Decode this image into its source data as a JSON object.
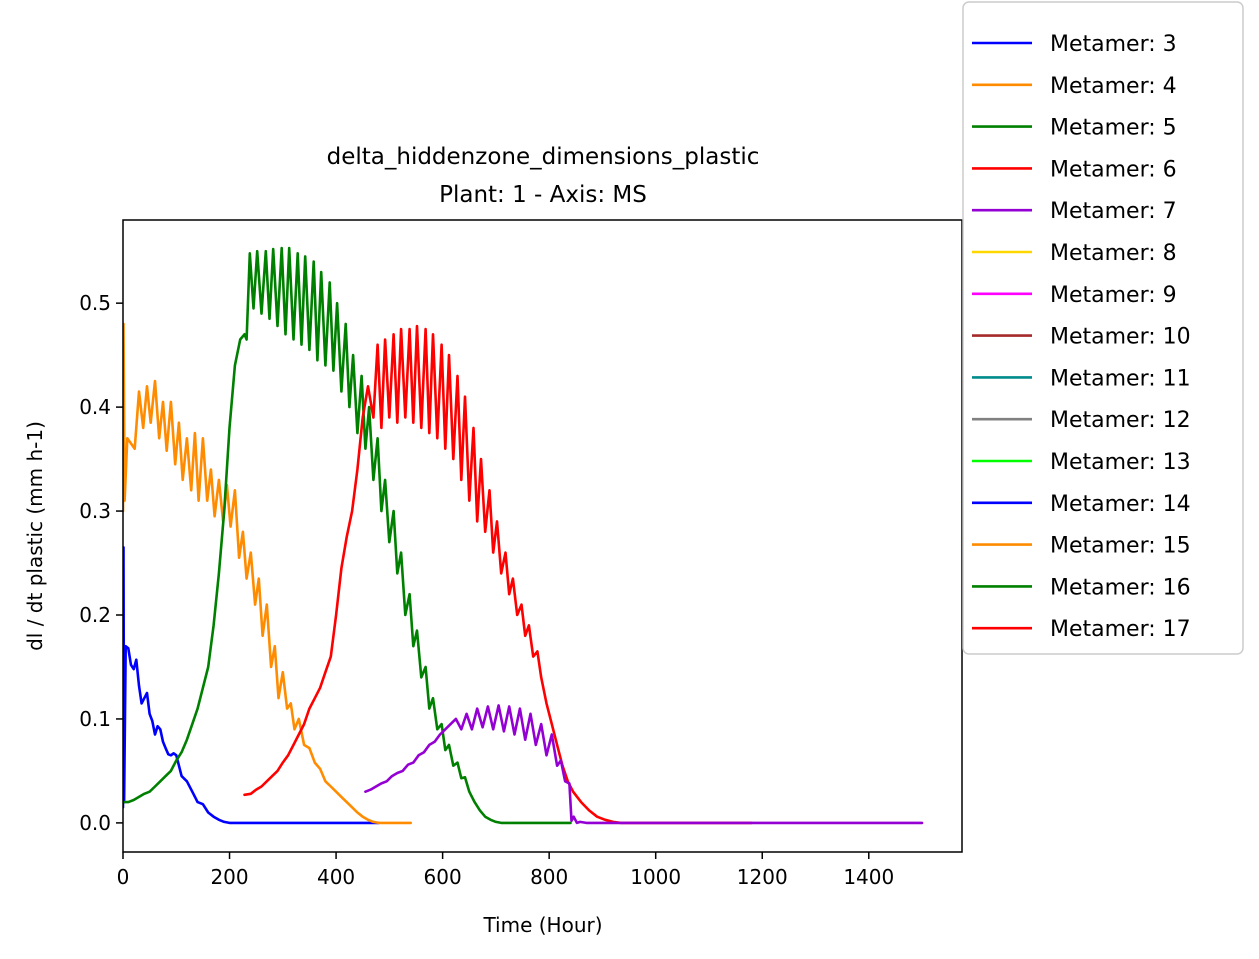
{
  "chart_data": {
    "type": "line",
    "title": "delta_hiddenzone_dimensions_plastic",
    "subtitle": "Plant: 1 - Axis: MS",
    "xlabel": "Time (Hour)",
    "ylabel": "dl / dt plastic (mm h-1)",
    "xlim": [
      0,
      1575
    ],
    "ylim": [
      -0.028,
      0.58
    ],
    "xticks": [
      0,
      200,
      400,
      600,
      800,
      1000,
      1200,
      1400
    ],
    "yticks": [
      0.0,
      0.1,
      0.2,
      0.3,
      0.4,
      0.5
    ],
    "xtick_labels": [
      "0",
      "200",
      "400",
      "600",
      "800",
      "1000",
      "1200",
      "1400"
    ],
    "ytick_labels": [
      "0.0",
      "0.1",
      "0.2",
      "0.3",
      "0.4",
      "0.5"
    ],
    "grid": false,
    "legend_position": "outside-top-right",
    "series": [
      {
        "name": "Metamer: 3",
        "color": "#0000ff",
        "x": [
          0,
          1,
          2,
          5,
          10,
          15,
          20,
          25,
          30,
          35,
          40,
          45,
          50,
          55,
          60,
          65,
          70,
          75,
          80,
          85,
          90,
          95,
          100,
          110,
          120,
          130,
          140,
          150,
          160,
          170,
          180,
          190,
          200,
          220,
          260,
          300,
          360,
          420,
          480
        ],
        "y": [
          0.015,
          0.265,
          0.02,
          0.17,
          0.168,
          0.152,
          0.148,
          0.157,
          0.132,
          0.115,
          0.12,
          0.125,
          0.105,
          0.098,
          0.085,
          0.093,
          0.09,
          0.078,
          0.072,
          0.066,
          0.065,
          0.067,
          0.065,
          0.045,
          0.04,
          0.03,
          0.02,
          0.018,
          0.01,
          0.006,
          0.003,
          0.001,
          0.0,
          0.0,
          0.0,
          0.0,
          0.0,
          0.0,
          0.0
        ]
      },
      {
        "name": "Metamer: 4",
        "color": "#ff8c00",
        "x": [
          0,
          1,
          3,
          8,
          15,
          22,
          30,
          38,
          45,
          52,
          60,
          68,
          75,
          82,
          90,
          98,
          105,
          112,
          120,
          128,
          135,
          142,
          150,
          158,
          165,
          172,
          180,
          188,
          195,
          202,
          210,
          218,
          225,
          232,
          240,
          248,
          255,
          262,
          270,
          278,
          285,
          292,
          300,
          308,
          315,
          322,
          330,
          340,
          350,
          360,
          370,
          380,
          390,
          400,
          410,
          420,
          430,
          440,
          450,
          460,
          470,
          480,
          500,
          540
        ],
        "y": [
          0.3,
          0.48,
          0.31,
          0.37,
          0.365,
          0.36,
          0.415,
          0.38,
          0.42,
          0.385,
          0.425,
          0.37,
          0.405,
          0.358,
          0.405,
          0.345,
          0.385,
          0.33,
          0.37,
          0.32,
          0.375,
          0.31,
          0.37,
          0.31,
          0.34,
          0.295,
          0.33,
          0.29,
          0.325,
          0.285,
          0.32,
          0.255,
          0.28,
          0.235,
          0.26,
          0.21,
          0.235,
          0.18,
          0.21,
          0.15,
          0.17,
          0.12,
          0.145,
          0.11,
          0.115,
          0.09,
          0.1,
          0.075,
          0.072,
          0.058,
          0.052,
          0.04,
          0.035,
          0.03,
          0.025,
          0.02,
          0.015,
          0.01,
          0.006,
          0.003,
          0.001,
          0.0,
          0.0,
          0.0
        ]
      },
      {
        "name": "Metamer: 5",
        "color": "#008000",
        "x": [
          0,
          10,
          20,
          30,
          40,
          50,
          60,
          70,
          80,
          90,
          100,
          110,
          120,
          130,
          140,
          150,
          160,
          170,
          180,
          190,
          200,
          210,
          220,
          228,
          232,
          238,
          245,
          252,
          260,
          268,
          275,
          282,
          290,
          298,
          305,
          312,
          320,
          328,
          335,
          342,
          350,
          358,
          365,
          372,
          380,
          388,
          395,
          402,
          410,
          418,
          425,
          432,
          440,
          448,
          455,
          462,
          470,
          478,
          485,
          492,
          500,
          508,
          515,
          522,
          530,
          538,
          545,
          552,
          560,
          568,
          575,
          582,
          590,
          598,
          605,
          612,
          620,
          628,
          635,
          642,
          650,
          660,
          670,
          680,
          690,
          700,
          710,
          720,
          730,
          740,
          750,
          760,
          780,
          800,
          840
        ],
        "y": [
          0.02,
          0.02,
          0.022,
          0.025,
          0.028,
          0.03,
          0.035,
          0.04,
          0.045,
          0.05,
          0.06,
          0.068,
          0.08,
          0.095,
          0.11,
          0.13,
          0.15,
          0.19,
          0.24,
          0.3,
          0.38,
          0.44,
          0.465,
          0.47,
          0.465,
          0.548,
          0.495,
          0.55,
          0.49,
          0.55,
          0.485,
          0.552,
          0.478,
          0.553,
          0.47,
          0.553,
          0.465,
          0.548,
          0.46,
          0.545,
          0.455,
          0.54,
          0.445,
          0.53,
          0.44,
          0.52,
          0.435,
          0.5,
          0.415,
          0.48,
          0.4,
          0.45,
          0.375,
          0.43,
          0.36,
          0.4,
          0.33,
          0.37,
          0.3,
          0.33,
          0.27,
          0.3,
          0.24,
          0.26,
          0.2,
          0.22,
          0.17,
          0.185,
          0.14,
          0.15,
          0.11,
          0.12,
          0.09,
          0.095,
          0.07,
          0.075,
          0.055,
          0.058,
          0.043,
          0.044,
          0.03,
          0.02,
          0.012,
          0.006,
          0.003,
          0.001,
          0.0,
          0.0,
          0.0,
          0.0,
          0.0,
          0.0,
          0.0,
          0.0,
          0.0
        ]
      },
      {
        "name": "Metamer: 6",
        "color": "#ff0000",
        "x": [
          228,
          240,
          250,
          260,
          270,
          280,
          290,
          300,
          310,
          320,
          330,
          340,
          350,
          360,
          370,
          380,
          390,
          400,
          410,
          420,
          430,
          440,
          450,
          460,
          470,
          478,
          485,
          492,
          500,
          508,
          515,
          522,
          530,
          538,
          545,
          552,
          560,
          568,
          575,
          582,
          590,
          598,
          605,
          612,
          620,
          628,
          635,
          642,
          650,
          658,
          665,
          672,
          680,
          688,
          695,
          702,
          710,
          718,
          725,
          732,
          740,
          748,
          755,
          762,
          770,
          778,
          785,
          795,
          805,
          815,
          825,
          835,
          845,
          860,
          875,
          890,
          905,
          920,
          935,
          950,
          965,
          980,
          1000,
          1100,
          1180
        ],
        "y": [
          0.027,
          0.028,
          0.032,
          0.035,
          0.04,
          0.045,
          0.05,
          0.058,
          0.065,
          0.075,
          0.085,
          0.095,
          0.11,
          0.12,
          0.13,
          0.145,
          0.16,
          0.2,
          0.245,
          0.275,
          0.3,
          0.34,
          0.39,
          0.42,
          0.39,
          0.46,
          0.38,
          0.465,
          0.39,
          0.47,
          0.385,
          0.475,
          0.39,
          0.475,
          0.385,
          0.478,
          0.38,
          0.475,
          0.375,
          0.47,
          0.37,
          0.46,
          0.36,
          0.45,
          0.35,
          0.43,
          0.33,
          0.41,
          0.31,
          0.38,
          0.29,
          0.35,
          0.28,
          0.32,
          0.26,
          0.29,
          0.24,
          0.26,
          0.22,
          0.235,
          0.2,
          0.21,
          0.18,
          0.19,
          0.16,
          0.165,
          0.14,
          0.115,
          0.095,
          0.075,
          0.055,
          0.04,
          0.03,
          0.02,
          0.012,
          0.006,
          0.003,
          0.001,
          0.0,
          0.0,
          0.0,
          0.0,
          0.0,
          0.0,
          0.0
        ]
      },
      {
        "name": "Metamer: 7",
        "color": "#9400d3",
        "x": [
          455,
          465,
          475,
          485,
          495,
          505,
          515,
          525,
          535,
          545,
          555,
          565,
          575,
          585,
          595,
          605,
          615,
          625,
          635,
          645,
          655,
          665,
          675,
          685,
          695,
          705,
          715,
          725,
          735,
          745,
          755,
          765,
          775,
          785,
          795,
          805,
          815,
          822,
          830,
          838,
          842,
          846,
          852,
          858,
          870,
          900,
          1000,
          1200,
          1400,
          1500
        ],
        "y": [
          0.03,
          0.032,
          0.035,
          0.038,
          0.04,
          0.045,
          0.048,
          0.05,
          0.056,
          0.058,
          0.065,
          0.068,
          0.075,
          0.078,
          0.085,
          0.09,
          0.095,
          0.1,
          0.09,
          0.105,
          0.09,
          0.11,
          0.092,
          0.112,
          0.09,
          0.113,
          0.088,
          0.112,
          0.085,
          0.11,
          0.08,
          0.105,
          0.075,
          0.095,
          0.065,
          0.085,
          0.055,
          0.06,
          0.04,
          0.038,
          0.002,
          0.006,
          0.0,
          0.001,
          0.0,
          0.0,
          0.0,
          0.0,
          0.0,
          0.0
        ]
      }
    ],
    "legend_only": [
      {
        "name": "Metamer: 8",
        "color": "#ffd700"
      },
      {
        "name": "Metamer: 9",
        "color": "#ff00ff"
      },
      {
        "name": "Metamer: 10",
        "color": "#a52a2a"
      },
      {
        "name": "Metamer: 11",
        "color": "#008b8b"
      },
      {
        "name": "Metamer: 12",
        "color": "#808080"
      },
      {
        "name": "Metamer: 13",
        "color": "#00ff00"
      },
      {
        "name": "Metamer: 14",
        "color": "#0000ff"
      },
      {
        "name": "Metamer: 15",
        "color": "#ff8c00"
      },
      {
        "name": "Metamer: 16",
        "color": "#008000"
      },
      {
        "name": "Metamer: 17",
        "color": "#ff0000"
      }
    ]
  }
}
